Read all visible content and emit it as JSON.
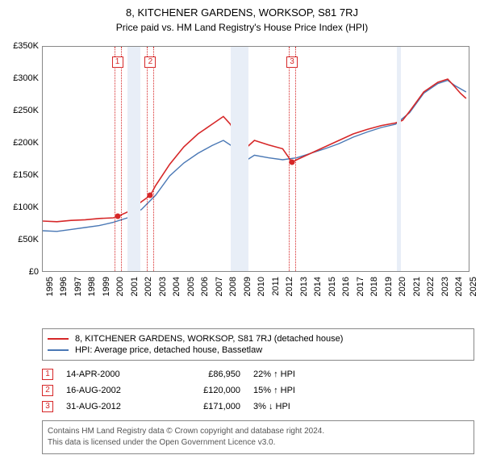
{
  "title": "8, KITCHENER GARDENS, WORKSOP, S81 7RJ",
  "subtitle": "Price paid vs. HM Land Registry's House Price Index (HPI)",
  "colors": {
    "series1": "#d62728",
    "series2": "#4a78b5",
    "grid": "#888888",
    "shade": "#e8eef7",
    "footer_text": "#555555"
  },
  "axes": {
    "x_min": 1995,
    "x_max": 2025.3,
    "y_min": 0,
    "y_max": 350000,
    "x_ticks": [
      1995,
      1996,
      1997,
      1998,
      1999,
      2000,
      2001,
      2002,
      2003,
      2004,
      2005,
      2006,
      2007,
      2008,
      2009,
      2010,
      2011,
      2012,
      2013,
      2014,
      2015,
      2016,
      2017,
      2018,
      2019,
      2020,
      2021,
      2022,
      2023,
      2024,
      2025
    ],
    "y_ticks_values": [
      0,
      50000,
      100000,
      150000,
      200000,
      250000,
      300000,
      350000
    ],
    "y_ticks_labels": [
      "£0",
      "£50K",
      "£100K",
      "£150K",
      "£200K",
      "£250K",
      "£300K",
      "£350K"
    ]
  },
  "shaded_bands": [
    {
      "start": 2001.0,
      "end": 2001.9
    },
    {
      "start": 2008.3,
      "end": 2009.6
    },
    {
      "start": 2020.1,
      "end": 2020.4
    }
  ],
  "markers": [
    {
      "num": "1",
      "x": 2000.29,
      "y": 86950,
      "color": "#d62728"
    },
    {
      "num": "2",
      "x": 2002.63,
      "y": 120000,
      "color": "#d62728"
    },
    {
      "num": "3",
      "x": 2012.67,
      "y": 171000,
      "color": "#d62728"
    }
  ],
  "series1": {
    "name": "8, KITCHENER GARDENS, WORKSOP, S81 7RJ (detached house)",
    "points": [
      [
        1995.0,
        80000
      ],
      [
        1996.0,
        79000
      ],
      [
        1997.0,
        81000
      ],
      [
        1998.0,
        82000
      ],
      [
        1999.0,
        84000
      ],
      [
        2000.0,
        85000
      ],
      [
        2000.29,
        86950
      ],
      [
        2001.0,
        94000
      ],
      [
        2002.0,
        110000
      ],
      [
        2002.63,
        120000
      ],
      [
        2003.0,
        135000
      ],
      [
        2004.0,
        168000
      ],
      [
        2005.0,
        195000
      ],
      [
        2006.0,
        215000
      ],
      [
        2007.0,
        230000
      ],
      [
        2007.8,
        242000
      ],
      [
        2008.3,
        230000
      ],
      [
        2009.0,
        200000
      ],
      [
        2009.5,
        195000
      ],
      [
        2010.0,
        205000
      ],
      [
        2011.0,
        198000
      ],
      [
        2012.0,
        192000
      ],
      [
        2012.67,
        171000
      ],
      [
        2013.0,
        175000
      ],
      [
        2014.0,
        185000
      ],
      [
        2015.0,
        195000
      ],
      [
        2016.0,
        205000
      ],
      [
        2017.0,
        215000
      ],
      [
        2018.0,
        222000
      ],
      [
        2019.0,
        228000
      ],
      [
        2020.0,
        232000
      ],
      [
        2020.5,
        236000
      ],
      [
        2021.0,
        250000
      ],
      [
        2022.0,
        280000
      ],
      [
        2023.0,
        295000
      ],
      [
        2023.7,
        300000
      ],
      [
        2024.2,
        288000
      ],
      [
        2024.6,
        278000
      ],
      [
        2025.0,
        270000
      ]
    ]
  },
  "series2": {
    "name": "HPI: Average price, detached house, Bassetlaw",
    "points": [
      [
        1995.0,
        65000
      ],
      [
        1996.0,
        64000
      ],
      [
        1997.0,
        67000
      ],
      [
        1998.0,
        70000
      ],
      [
        1999.0,
        73000
      ],
      [
        2000.0,
        78000
      ],
      [
        2001.0,
        85000
      ],
      [
        2002.0,
        98000
      ],
      [
        2003.0,
        120000
      ],
      [
        2004.0,
        150000
      ],
      [
        2005.0,
        170000
      ],
      [
        2006.0,
        185000
      ],
      [
        2007.0,
        197000
      ],
      [
        2007.8,
        205000
      ],
      [
        2008.5,
        195000
      ],
      [
        2009.0,
        178000
      ],
      [
        2009.5,
        175000
      ],
      [
        2010.0,
        182000
      ],
      [
        2011.0,
        178000
      ],
      [
        2012.0,
        175000
      ],
      [
        2013.0,
        178000
      ],
      [
        2014.0,
        185000
      ],
      [
        2015.0,
        192000
      ],
      [
        2016.0,
        200000
      ],
      [
        2017.0,
        210000
      ],
      [
        2018.0,
        218000
      ],
      [
        2019.0,
        225000
      ],
      [
        2020.0,
        230000
      ],
      [
        2021.0,
        248000
      ],
      [
        2022.0,
        278000
      ],
      [
        2023.0,
        293000
      ],
      [
        2023.7,
        298000
      ],
      [
        2024.2,
        290000
      ],
      [
        2024.6,
        285000
      ],
      [
        2025.0,
        280000
      ]
    ]
  },
  "legend": [
    {
      "color": "#d62728",
      "label": "8, KITCHENER GARDENS, WORKSOP, S81 7RJ (detached house)"
    },
    {
      "color": "#4a78b5",
      "label": "HPI: Average price, detached house, Bassetlaw"
    }
  ],
  "sales": [
    {
      "num": "1",
      "color": "#d62728",
      "date": "14-APR-2000",
      "price": "£86,950",
      "pct": "22% ↑ HPI"
    },
    {
      "num": "2",
      "color": "#d62728",
      "date": "16-AUG-2002",
      "price": "£120,000",
      "pct": "15% ↑ HPI"
    },
    {
      "num": "3",
      "color": "#d62728",
      "date": "31-AUG-2012",
      "price": "£171,000",
      "pct": "3% ↓ HPI"
    }
  ],
  "footer": {
    "line1": "Contains HM Land Registry data © Crown copyright and database right 2024.",
    "line2": "This data is licensed under the Open Government Licence v3.0."
  }
}
